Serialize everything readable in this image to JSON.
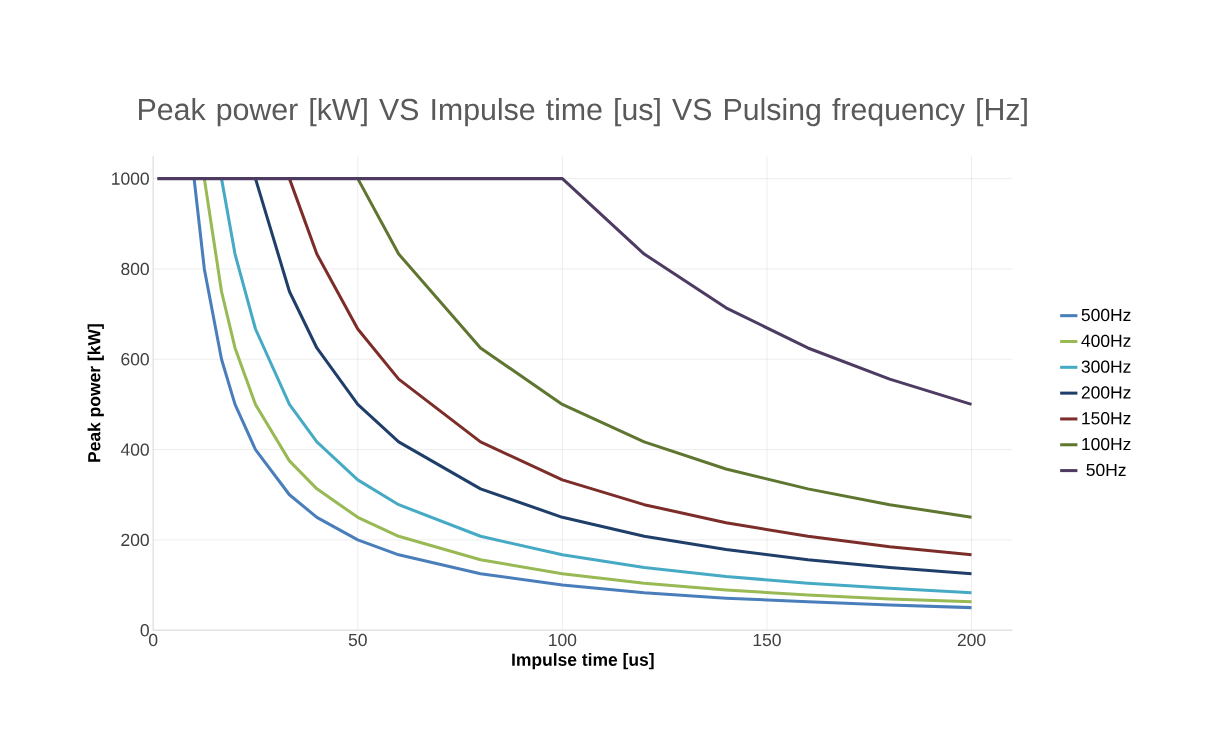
{
  "chart_data": {
    "type": "line",
    "title": "Peak power [kW] VS Impulse time [us] VS Pulsing frequency [Hz]",
    "xlabel": "Impulse time [us]",
    "ylabel": "Peak power [kW]",
    "x": [
      1,
      10,
      12.5,
      16.7,
      20,
      25,
      33.3,
      40,
      50,
      60,
      80,
      100,
      120,
      140,
      160,
      180,
      200
    ],
    "series": [
      {
        "name": "500Hz",
        "color": "#4a7ebb",
        "values": [
          null,
          1000,
          800,
          600,
          500,
          400,
          300,
          250,
          200,
          167,
          125,
          100,
          83,
          71,
          63,
          56,
          50
        ]
      },
      {
        "name": "400Hz",
        "color": "#98b954",
        "values": [
          null,
          null,
          1000,
          750,
          625,
          500,
          375,
          313,
          250,
          208,
          156,
          125,
          104,
          89,
          78,
          69,
          63
        ]
      },
      {
        "name": "300Hz",
        "color": "#46aac5",
        "values": [
          null,
          null,
          null,
          1000,
          833,
          667,
          500,
          417,
          333,
          278,
          208,
          167,
          139,
          119,
          104,
          93,
          83
        ]
      },
      {
        "name": "200Hz",
        "color": "#1f3f6a",
        "values": [
          null,
          null,
          null,
          null,
          null,
          1000,
          750,
          625,
          500,
          417,
          313,
          250,
          208,
          179,
          156,
          139,
          125
        ]
      },
      {
        "name": "150Hz",
        "color": "#7d2d29",
        "values": [
          null,
          null,
          null,
          null,
          null,
          null,
          1000,
          833,
          667,
          556,
          417,
          333,
          278,
          238,
          208,
          185,
          167
        ]
      },
      {
        "name": "100Hz",
        "color": "#5f7631",
        "values": [
          null,
          null,
          null,
          null,
          null,
          null,
          null,
          null,
          1000,
          833,
          625,
          500,
          417,
          357,
          313,
          278,
          250
        ]
      },
      {
        "name": "50Hz",
        "color": "#4d3b62",
        "values": [
          1000,
          1000,
          1000,
          1000,
          1000,
          1000,
          1000,
          1000,
          1000,
          1000,
          1000,
          1000,
          833,
          714,
          625,
          556,
          500
        ]
      }
    ],
    "xlim": [
      0,
      210
    ],
    "ylim": [
      0,
      1050
    ],
    "xticks": [
      0,
      50,
      100,
      150,
      200
    ],
    "yticks": [
      0,
      200,
      400,
      600,
      800,
      1000
    ],
    "grid": true,
    "legend": "right",
    "marker": "none",
    "line_style": "solid"
  }
}
